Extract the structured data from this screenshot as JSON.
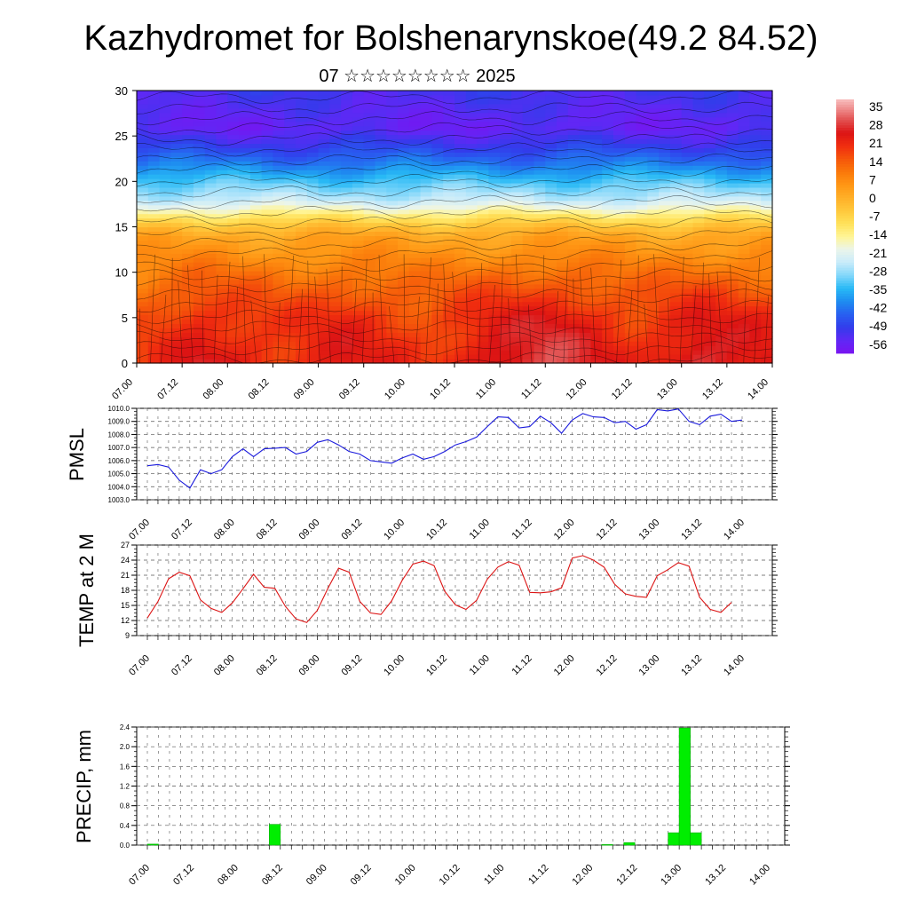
{
  "title": "Kazhydromet for Bolshenarynskoe(49.2 84.52)",
  "subtitle": "07 ☆☆☆☆☆☆☆☆ 2025",
  "time_ticks": [
    "07.00",
    "07.12",
    "08.00",
    "08.12",
    "09.00",
    "09.12",
    "10.00",
    "10.12",
    "11.00",
    "11.12",
    "12.00",
    "12.12",
    "13.00",
    "13.12",
    "14.00"
  ],
  "colors": {
    "pmsl_line": "#1a1adc",
    "temp_line": "#dc1414",
    "precip_bar": "#00ee00"
  },
  "chart_data": [
    {
      "id": "cross-section",
      "type": "heatmap",
      "ylim": [
        0,
        30
      ],
      "y_ticks": [
        0,
        5,
        10,
        15,
        20,
        25,
        30
      ],
      "colorbar_labels": [
        "35",
        "28",
        "21",
        "14",
        "7",
        "0",
        "-7",
        "-14",
        "-21",
        "-28",
        "-35",
        "-42",
        "-49",
        "-56"
      ],
      "colorbar_range": [
        -60,
        38
      ],
      "profile_levels": [
        0,
        2,
        5,
        8,
        10,
        12,
        14,
        15,
        16,
        17,
        18,
        20,
        22,
        24,
        26,
        28,
        30
      ],
      "profile_temps": [
        22,
        21,
        19,
        14,
        10,
        6,
        2,
        -3,
        -10,
        -18,
        -25,
        -33,
        -42,
        -50,
        -56,
        -54,
        -52
      ],
      "surface_anomaly_x": [
        0,
        0.7,
        1.6,
        2.3,
        3.2,
        4.0,
        4.6,
        5.5,
        6.2,
        7.0
      ],
      "surface_anomaly_y": [
        -6,
        4,
        -2,
        3,
        -4,
        6,
        8,
        -2,
        7,
        2
      ]
    },
    {
      "id": "pmsl",
      "type": "line",
      "ylabel": "PMSL",
      "ylim": [
        1003,
        1010
      ],
      "y_ticks": [
        "1003.0",
        "1004.0",
        "1005.0",
        "1006.0",
        "1007.0",
        "1008.0",
        "1009.0",
        "1010.0"
      ],
      "series": [
        {
          "x": [
            0,
            0.125,
            0.25,
            0.375,
            0.5,
            0.625,
            0.75,
            0.875,
            1,
            1.125,
            1.25,
            1.375,
            1.5,
            1.625,
            1.75,
            1.875,
            2,
            2.125,
            2.25,
            2.375,
            2.5,
            2.625,
            2.75,
            2.875,
            3,
            3.125,
            3.25,
            3.375,
            3.5,
            3.625,
            3.75,
            3.875,
            4,
            4.125,
            4.25,
            4.375,
            4.5,
            4.625,
            4.75,
            4.875,
            5,
            5.125,
            5.25,
            5.375,
            5.5,
            5.625,
            5.75,
            5.875,
            6,
            6.125,
            6.25,
            6.375,
            6.5,
            6.625,
            6.75,
            6.875,
            7
          ],
          "values": [
            1005.6,
            1005.7,
            1005.5,
            1004.5,
            1003.9,
            1005.3,
            1005.0,
            1005.3,
            1006.3,
            1006.9,
            1006.3,
            1006.9,
            1006.95,
            1007.0,
            1006.5,
            1006.7,
            1007.4,
            1007.6,
            1007.2,
            1006.7,
            1006.5,
            1006.0,
            1005.9,
            1005.8,
            1006.2,
            1006.5,
            1006.1,
            1006.3,
            1006.7,
            1007.2,
            1007.45,
            1007.8,
            1008.6,
            1009.35,
            1009.3,
            1008.5,
            1008.6,
            1009.4,
            1008.9,
            1008.1,
            1009.1,
            1009.6,
            1009.35,
            1009.3,
            1008.9,
            1009.0,
            1008.4,
            1008.75,
            1009.9,
            1009.8,
            1009.95,
            1009.0,
            1008.75,
            1009.4,
            1009.55,
            1009.0,
            1009.1
          ]
        }
      ]
    },
    {
      "id": "temp",
      "type": "line",
      "ylabel": "TEMP at 2 M",
      "ylim": [
        9,
        27
      ],
      "y_ticks": [
        "9",
        "12",
        "15",
        "18",
        "21",
        "24",
        "27"
      ],
      "series": [
        {
          "x": [
            0,
            0.125,
            0.25,
            0.375,
            0.5,
            0.625,
            0.75,
            0.875,
            1,
            1.125,
            1.25,
            1.375,
            1.5,
            1.625,
            1.75,
            1.875,
            2,
            2.125,
            2.25,
            2.375,
            2.5,
            2.625,
            2.75,
            2.875,
            3,
            3.125,
            3.25,
            3.375,
            3.5,
            3.625,
            3.75,
            3.875,
            4,
            4.125,
            4.25,
            4.375,
            4.5,
            4.625,
            4.75,
            4.875,
            5,
            5.125,
            5.25,
            5.375,
            5.5,
            5.625,
            5.75,
            5.875,
            6,
            6.125,
            6.25,
            6.375,
            6.5,
            6.625,
            6.75,
            6.875,
            7
          ],
          "values": [
            12.5,
            15.8,
            20.3,
            21.6,
            20.9,
            16.1,
            14.4,
            13.6,
            15.5,
            18.3,
            21.2,
            18.6,
            18.4,
            14.8,
            12.3,
            11.6,
            14.0,
            18.4,
            22.4,
            21.6,
            15.8,
            13.5,
            13.2,
            15.9,
            20.0,
            23.2,
            23.8,
            22.9,
            17.8,
            15.1,
            14.2,
            16.0,
            20.2,
            22.6,
            23.7,
            23.0,
            17.6,
            17.5,
            17.7,
            18.5,
            24.4,
            24.9,
            24.0,
            22.6,
            19.2,
            17.3,
            16.8,
            16.6,
            20.9,
            22.1,
            23.5,
            22.8,
            16.6,
            14.2,
            13.6,
            15.6,
            null
          ]
        }
      ]
    },
    {
      "id": "precip",
      "type": "bar",
      "ylabel": "PRECIP, mm",
      "ylim": [
        0,
        2.4
      ],
      "y_ticks": [
        "0.0",
        "0.4",
        "0.8",
        "1.2",
        "1.6",
        "2.0",
        "2.4"
      ],
      "bar_width": 0.125,
      "x": [
        0.0,
        1.375,
        5.125,
        5.375,
        5.875,
        6.0,
        6.125
      ],
      "values": [
        0.02,
        0.42,
        0.01,
        0.05,
        0.25,
        2.38,
        0.25
      ]
    }
  ]
}
